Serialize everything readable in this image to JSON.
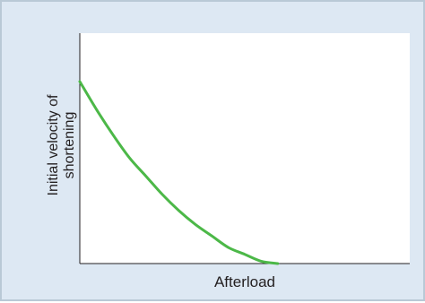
{
  "chart_data": {
    "type": "line",
    "title": "",
    "xlabel": "Afterload",
    "ylabel_lines": [
      "Initial velocity of",
      "shortening"
    ],
    "xlim": [
      0,
      1
    ],
    "ylim": [
      0,
      1
    ],
    "grid": false,
    "series": [
      {
        "color": "#4cb848",
        "x": [
          0.0,
          0.05,
          0.1,
          0.15,
          0.2,
          0.25,
          0.3,
          0.35,
          0.4,
          0.45,
          0.5,
          0.55,
          0.6
        ],
        "y": [
          0.79,
          0.67,
          0.56,
          0.46,
          0.38,
          0.3,
          0.23,
          0.17,
          0.12,
          0.07,
          0.04,
          0.01,
          0.0
        ]
      }
    ]
  },
  "colors": {
    "panel_background": "#dde8f3",
    "panel_border": "#b9c9d6",
    "plot_background": "#ffffff",
    "axis": "#231f20",
    "curve": "#4cb848"
  }
}
